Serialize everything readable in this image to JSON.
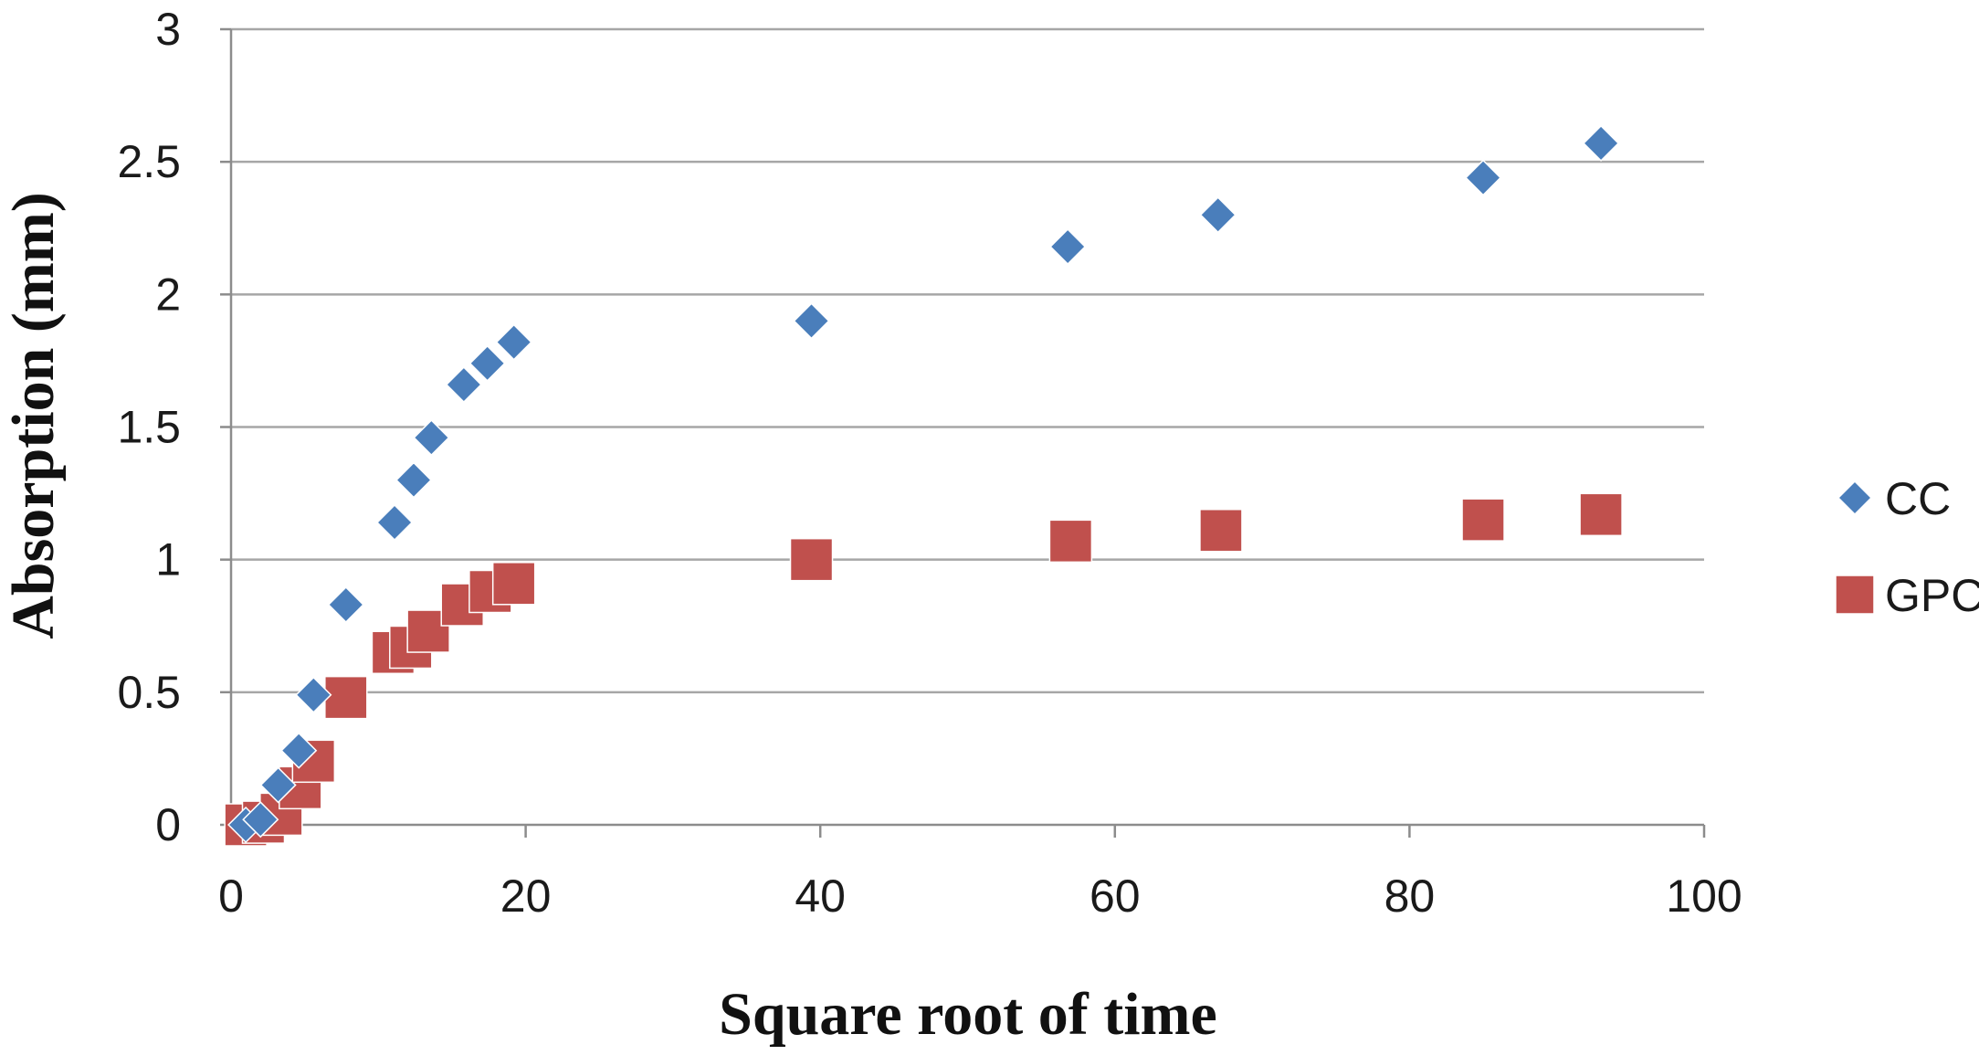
{
  "chart_data": {
    "type": "scatter",
    "title": "",
    "xlabel": "Square root of time",
    "ylabel": "Absorption (mm)",
    "xlim": [
      0,
      100
    ],
    "ylim": [
      0,
      3
    ],
    "x_ticks": [
      "0",
      "20",
      "40",
      "60",
      "80",
      "100"
    ],
    "y_ticks": [
      "0",
      "0.5",
      "1",
      "1.5",
      "2",
      "2.5",
      "3"
    ],
    "x_tick_values": [
      0,
      20,
      40,
      60,
      80,
      100
    ],
    "y_tick_values": [
      0,
      0.5,
      1,
      1.5,
      2,
      2.5,
      3
    ],
    "grid": "horizontal",
    "legend_position": "right",
    "series": [
      {
        "name": "CC",
        "marker": "diamond",
        "color": "#4a7ebb",
        "points": [
          {
            "x": 1.0,
            "y": 0.0
          },
          {
            "x": 2.0,
            "y": 0.02
          },
          {
            "x": 3.2,
            "y": 0.15
          },
          {
            "x": 4.6,
            "y": 0.28
          },
          {
            "x": 5.6,
            "y": 0.49
          },
          {
            "x": 7.8,
            "y": 0.83
          },
          {
            "x": 11.1,
            "y": 1.14
          },
          {
            "x": 12.4,
            "y": 1.3
          },
          {
            "x": 13.6,
            "y": 1.46
          },
          {
            "x": 15.8,
            "y": 1.66
          },
          {
            "x": 17.4,
            "y": 1.74
          },
          {
            "x": 19.2,
            "y": 1.82
          },
          {
            "x": 39.4,
            "y": 1.9
          },
          {
            "x": 56.8,
            "y": 2.18
          },
          {
            "x": 67.0,
            "y": 2.3
          },
          {
            "x": 85.0,
            "y": 2.44
          },
          {
            "x": 93.0,
            "y": 2.57
          }
        ]
      },
      {
        "name": "GPC",
        "marker": "square",
        "color": "#c0504d",
        "points": [
          {
            "x": 1.0,
            "y": 0.0
          },
          {
            "x": 2.2,
            "y": 0.01
          },
          {
            "x": 3.4,
            "y": 0.04
          },
          {
            "x": 4.7,
            "y": 0.14
          },
          {
            "x": 5.6,
            "y": 0.24
          },
          {
            "x": 7.8,
            "y": 0.48
          },
          {
            "x": 11.0,
            "y": 0.65
          },
          {
            "x": 12.2,
            "y": 0.67
          },
          {
            "x": 13.4,
            "y": 0.73
          },
          {
            "x": 15.7,
            "y": 0.83
          },
          {
            "x": 17.6,
            "y": 0.88
          },
          {
            "x": 19.2,
            "y": 0.91
          },
          {
            "x": 39.4,
            "y": 1.0
          },
          {
            "x": 57.0,
            "y": 1.07
          },
          {
            "x": 67.2,
            "y": 1.11
          },
          {
            "x": 85.0,
            "y": 1.15
          },
          {
            "x": 93.0,
            "y": 1.17
          }
        ]
      }
    ]
  }
}
